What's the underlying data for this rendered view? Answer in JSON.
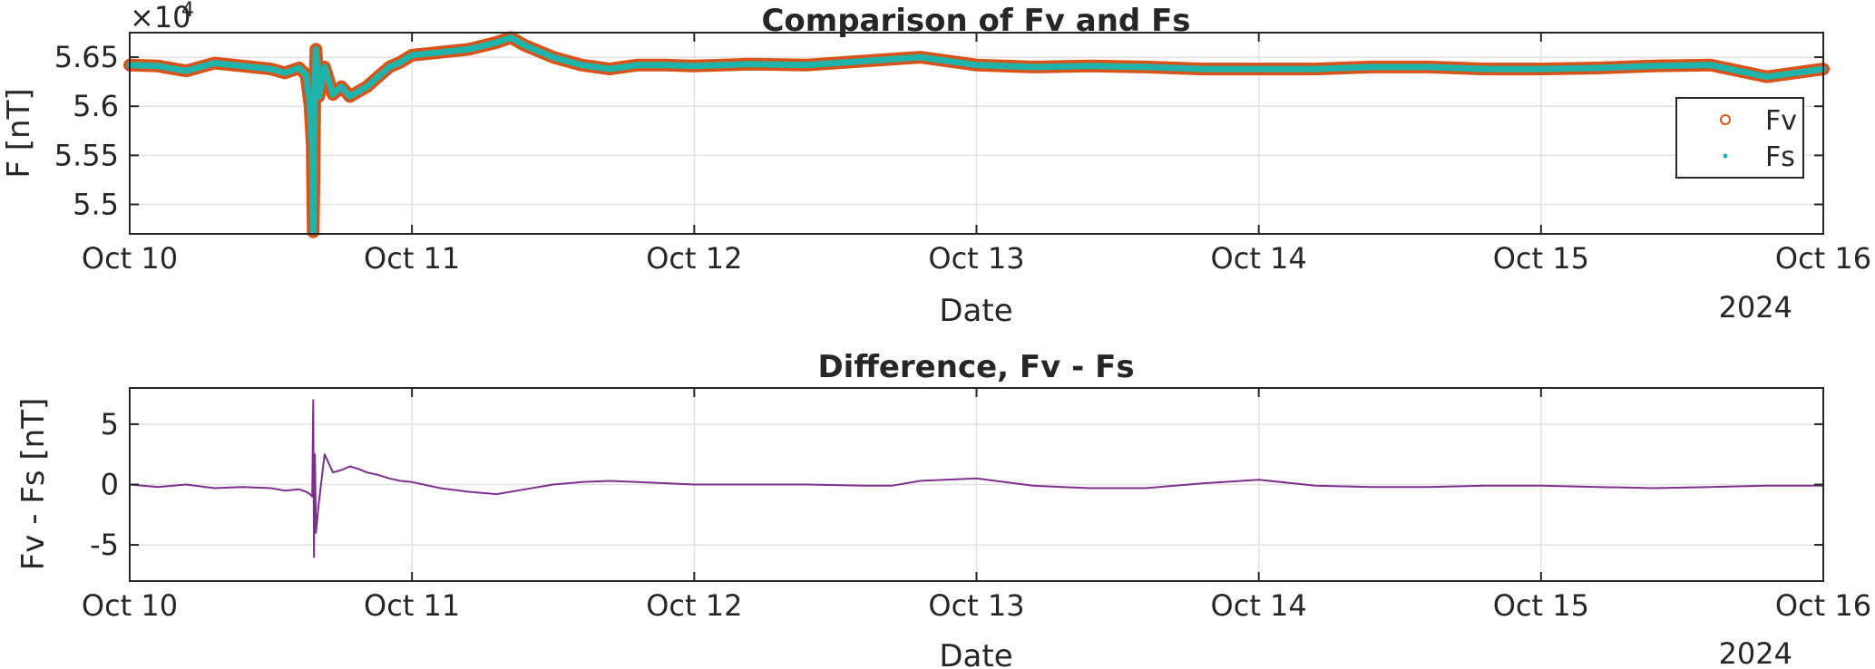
{
  "chart_data": [
    {
      "type": "line",
      "title": "Comparison of Fv and Fs",
      "xlabel": "Date",
      "ylabel": "F [nT]",
      "year_label": "2024",
      "exponent_label": "×10",
      "exponent_power": "4",
      "x_tick_labels": [
        "Oct 10",
        "Oct 11",
        "Oct 12",
        "Oct 13",
        "Oct 14",
        "Oct 15",
        "Oct 16"
      ],
      "y_tick_labels": [
        "5.5",
        "5.55",
        "5.6",
        "5.65"
      ],
      "y_ticks": [
        55000,
        55500,
        56000,
        56500
      ],
      "xlim": [
        "2024-10-10 00:00",
        "2024-10-16 00:00"
      ],
      "ylim": [
        54700,
        56750
      ],
      "grid": true,
      "legend_position": "right",
      "series": [
        {
          "name": "Fv",
          "marker": "circle",
          "color": "#d95319",
          "x": [
            "2024-10-10 00:00",
            "2024-10-10 02:24",
            "2024-10-10 04:48",
            "2024-10-10 07:12",
            "2024-10-10 09:36",
            "2024-10-10 12:00",
            "2024-10-10 13:12",
            "2024-10-10 14:24",
            "2024-10-10 15:00",
            "2024-10-10 15:20",
            "2024-10-10 15:31",
            "2024-10-10 15:36",
            "2024-10-10 15:40",
            "2024-10-10 15:45",
            "2024-10-10 15:50",
            "2024-10-10 16:05",
            "2024-10-10 16:34",
            "2024-10-10 17:17",
            "2024-10-10 18:00",
            "2024-10-10 18:43",
            "2024-10-10 19:26",
            "2024-10-10 20:10",
            "2024-10-10 21:07",
            "2024-10-10 22:05",
            "2024-10-10 23:02",
            "2024-10-11 00:00",
            "2024-10-11 02:24",
            "2024-10-11 04:48",
            "2024-10-11 07:12",
            "2024-10-11 08:24",
            "2024-10-11 09:36",
            "2024-10-11 12:00",
            "2024-10-11 14:24",
            "2024-10-11 16:48",
            "2024-10-11 19:12",
            "2024-10-11 21:36",
            "2024-10-12 00:00",
            "2024-10-12 04:48",
            "2024-10-12 09:36",
            "2024-10-12 14:24",
            "2024-10-12 19:12",
            "2024-10-13 00:00",
            "2024-10-13 04:48",
            "2024-10-13 09:36",
            "2024-10-13 14:24",
            "2024-10-13 19:12",
            "2024-10-14 00:00",
            "2024-10-14 04:48",
            "2024-10-14 09:36",
            "2024-10-14 14:24",
            "2024-10-14 19:12",
            "2024-10-15 00:00",
            "2024-10-15 04:48",
            "2024-10-15 09:36",
            "2024-10-15 14:24",
            "2024-10-15 19:12",
            "2024-10-16 00:00"
          ],
          "y": [
            56420,
            56410,
            56360,
            56440,
            56410,
            56380,
            56340,
            56390,
            56320,
            56000,
            55600,
            54720,
            55300,
            56250,
            56580,
            56100,
            56400,
            56120,
            56200,
            56100,
            56150,
            56200,
            56300,
            56400,
            56450,
            56520,
            56550,
            56580,
            56650,
            56700,
            56620,
            56500,
            56420,
            56380,
            56420,
            56420,
            56410,
            56430,
            56420,
            56460,
            56500,
            56420,
            56400,
            56410,
            56400,
            56380,
            56380,
            56380,
            56400,
            56400,
            56380,
            56380,
            56390,
            56410,
            56420,
            56300,
            56380
          ]
        },
        {
          "name": "Fs",
          "marker": "point",
          "color": "#1fb3aa",
          "x": [
            "2024-10-10 00:00",
            "2024-10-10 02:24",
            "2024-10-10 04:48",
            "2024-10-10 07:12",
            "2024-10-10 09:36",
            "2024-10-10 12:00",
            "2024-10-10 13:12",
            "2024-10-10 14:24",
            "2024-10-10 15:00",
            "2024-10-10 15:20",
            "2024-10-10 15:31",
            "2024-10-10 15:36",
            "2024-10-10 15:40",
            "2024-10-10 15:45",
            "2024-10-10 15:50",
            "2024-10-10 16:05",
            "2024-10-10 16:34",
            "2024-10-10 17:17",
            "2024-10-10 18:00",
            "2024-10-10 18:43",
            "2024-10-10 19:26",
            "2024-10-10 20:10",
            "2024-10-10 21:07",
            "2024-10-10 22:05",
            "2024-10-10 23:02",
            "2024-10-11 00:00",
            "2024-10-11 02:24",
            "2024-10-11 04:48",
            "2024-10-11 07:12",
            "2024-10-11 08:24",
            "2024-10-11 09:36",
            "2024-10-11 12:00",
            "2024-10-11 14:24",
            "2024-10-11 16:48",
            "2024-10-11 19:12",
            "2024-10-11 21:36",
            "2024-10-12 00:00",
            "2024-10-12 04:48",
            "2024-10-12 09:36",
            "2024-10-12 14:24",
            "2024-10-12 19:12",
            "2024-10-13 00:00",
            "2024-10-13 04:48",
            "2024-10-13 09:36",
            "2024-10-13 14:24",
            "2024-10-13 19:12",
            "2024-10-14 00:00",
            "2024-10-14 04:48",
            "2024-10-14 09:36",
            "2024-10-14 14:24",
            "2024-10-14 19:12",
            "2024-10-15 00:00",
            "2024-10-15 04:48",
            "2024-10-15 09:36",
            "2024-10-15 14:24",
            "2024-10-15 19:12",
            "2024-10-16 00:00"
          ],
          "y": [
            56420,
            56410,
            56360,
            56440,
            56410,
            56380,
            56340,
            56390,
            56320,
            56000,
            55600,
            54720,
            55300,
            56250,
            56580,
            56100,
            56400,
            56120,
            56200,
            56100,
            56150,
            56200,
            56300,
            56400,
            56450,
            56520,
            56550,
            56580,
            56650,
            56700,
            56620,
            56500,
            56420,
            56380,
            56420,
            56420,
            56410,
            56430,
            56420,
            56460,
            56500,
            56420,
            56400,
            56410,
            56400,
            56380,
            56380,
            56380,
            56400,
            56400,
            56380,
            56380,
            56390,
            56410,
            56420,
            56300,
            56380
          ]
        }
      ]
    },
    {
      "type": "line",
      "title": "Difference, Fv - Fs",
      "xlabel": "Date",
      "ylabel": "Fv - Fs [nT]",
      "year_label": "2024",
      "x_tick_labels": [
        "Oct 10",
        "Oct 11",
        "Oct 12",
        "Oct 13",
        "Oct 14",
        "Oct 15",
        "Oct 16"
      ],
      "y_tick_labels": [
        "-5",
        "0",
        "5"
      ],
      "y_ticks": [
        -5,
        0,
        5
      ],
      "xlim": [
        "2024-10-10 00:00",
        "2024-10-16 00:00"
      ],
      "ylim": [
        -8,
        8
      ],
      "grid": true,
      "series": [
        {
          "color": "#7e2f8e",
          "x": [
            "2024-10-10 00:00",
            "2024-10-10 02:24",
            "2024-10-10 04:48",
            "2024-10-10 07:12",
            "2024-10-10 09:36",
            "2024-10-10 12:00",
            "2024-10-10 13:12",
            "2024-10-10 14:24",
            "2024-10-10 15:00",
            "2024-10-10 15:20",
            "2024-10-10 15:31",
            "2024-10-10 15:36",
            "2024-10-10 15:40",
            "2024-10-10 15:45",
            "2024-10-10 15:50",
            "2024-10-10 16:05",
            "2024-10-10 16:34",
            "2024-10-10 17:17",
            "2024-10-10 18:00",
            "2024-10-10 18:43",
            "2024-10-10 19:26",
            "2024-10-10 20:10",
            "2024-10-10 21:07",
            "2024-10-10 22:05",
            "2024-10-10 23:02",
            "2024-10-11 00:00",
            "2024-10-11 02:24",
            "2024-10-11 04:48",
            "2024-10-11 07:12",
            "2024-10-11 09:36",
            "2024-10-11 12:00",
            "2024-10-11 14:24",
            "2024-10-11 16:48",
            "2024-10-11 19:12",
            "2024-10-12 00:00",
            "2024-10-12 04:48",
            "2024-10-12 09:36",
            "2024-10-12 14:24",
            "2024-10-12 16:48",
            "2024-10-12 19:12",
            "2024-10-13 00:00",
            "2024-10-13 04:48",
            "2024-10-13 09:36",
            "2024-10-13 14:24",
            "2024-10-13 19:12",
            "2024-10-14 00:00",
            "2024-10-14 04:48",
            "2024-10-14 09:36",
            "2024-10-14 14:24",
            "2024-10-14 19:12",
            "2024-10-15 00:00",
            "2024-10-15 04:48",
            "2024-10-15 09:36",
            "2024-10-15 14:24",
            "2024-10-15 19:12",
            "2024-10-16 00:00"
          ],
          "y": [
            0,
            -0.2,
            0,
            -0.3,
            -0.2,
            -0.3,
            -0.5,
            -0.4,
            -0.6,
            -0.8,
            -1.0,
            7.0,
            -6.0,
            2.5,
            -4.0,
            -1.5,
            2.5,
            1.0,
            1.2,
            1.5,
            1.3,
            1.0,
            0.8,
            0.5,
            0.3,
            0.2,
            -0.3,
            -0.6,
            -0.8,
            -0.4,
            0,
            0.2,
            0.3,
            0.2,
            0,
            0,
            0,
            -0.1,
            -0.1,
            0.3,
            0.5,
            -0.1,
            -0.3,
            -0.3,
            0.1,
            0.4,
            -0.1,
            -0.2,
            -0.2,
            -0.1,
            -0.1,
            -0.2,
            -0.3,
            -0.2,
            -0.1,
            -0.1
          ]
        }
      ]
    }
  ]
}
